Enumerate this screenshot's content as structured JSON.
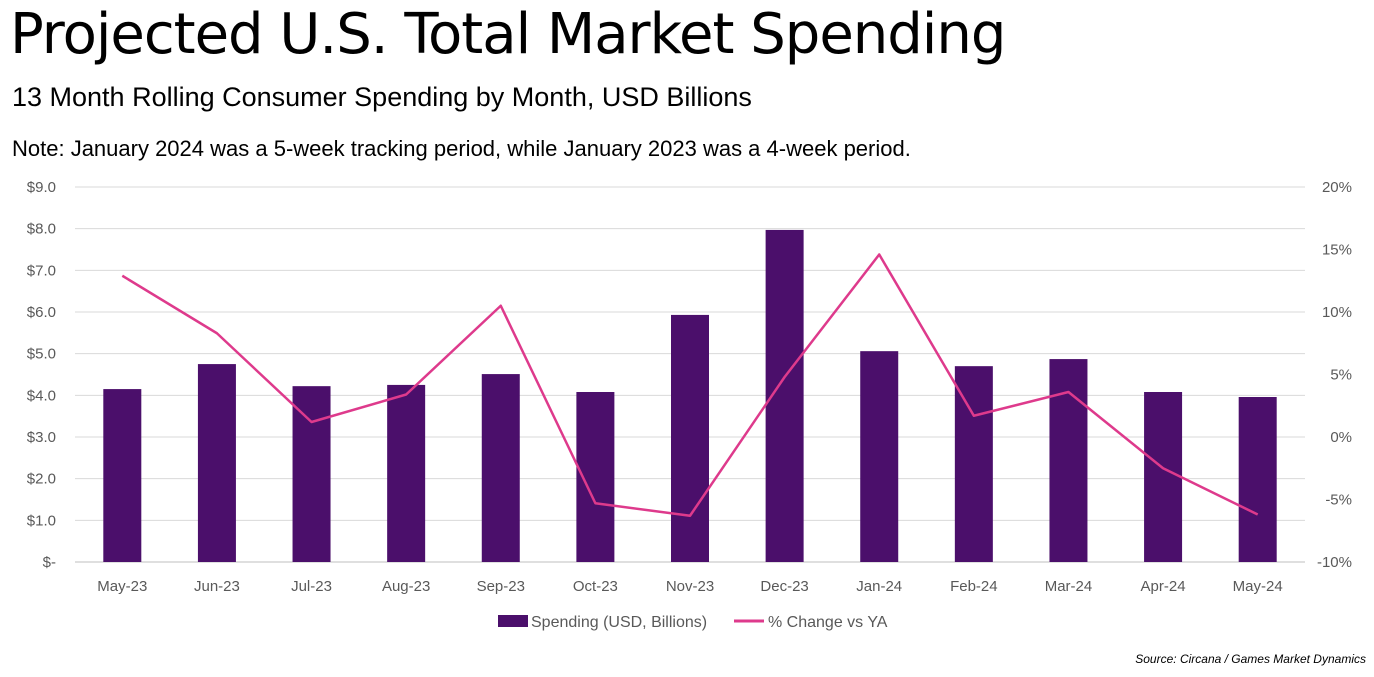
{
  "chart_data": {
    "type": "bar+line",
    "title": "Projected U.S. Total Market Spending",
    "subtitle": "13 Month Rolling Consumer Spending by Month, USD Billions",
    "note": "Note: January 2024 was a 5-week tracking period, while January 2023 was a 4-week period.",
    "source": "Source: Circana / Games Market Dynamics",
    "categories": [
      "May-23",
      "Jun-23",
      "Jul-23",
      "Aug-23",
      "Sep-23",
      "Oct-23",
      "Nov-23",
      "Dec-23",
      "Jan-24",
      "Feb-24",
      "Mar-24",
      "Apr-24",
      "May-24"
    ],
    "series": [
      {
        "name": "Spending (USD, Billions)",
        "type": "bar",
        "axis": "left",
        "color": "#4B0F6B",
        "values": [
          4.15,
          4.75,
          4.22,
          4.25,
          4.51,
          4.08,
          5.93,
          7.97,
          5.06,
          4.7,
          4.87,
          4.08,
          3.96
        ]
      },
      {
        "name": "% Change vs YA",
        "type": "line",
        "axis": "right",
        "color": "#DE3A8C",
        "values": [
          12.9,
          8.3,
          1.2,
          3.4,
          10.5,
          -5.3,
          -6.3,
          4.8,
          14.6,
          1.7,
          3.6,
          -2.5,
          -6.2
        ]
      }
    ],
    "left_axis": {
      "ylim": [
        0,
        9
      ],
      "ticks": [
        "$-",
        "$1.0",
        "$2.0",
        "$3.0",
        "$4.0",
        "$5.0",
        "$6.0",
        "$7.0",
        "$8.0",
        "$9.0"
      ]
    },
    "right_axis": {
      "ylim": [
        -10,
        20
      ],
      "ticks": [
        "-10%",
        "-5%",
        "0%",
        "5%",
        "10%",
        "15%",
        "20%"
      ]
    },
    "grid": true,
    "legend": "bottom"
  }
}
